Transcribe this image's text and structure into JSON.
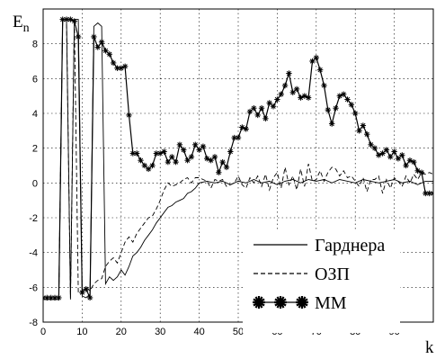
{
  "chart_data": {
    "type": "line",
    "xlabel": "k",
    "ylabel": "E",
    "ylabel_sub": "n",
    "xlim": [
      0,
      100
    ],
    "ylim": [
      -8,
      10
    ],
    "xticks": [
      0,
      10,
      20,
      30,
      40,
      50,
      60,
      70,
      80,
      90
    ],
    "yticks": [
      -8,
      -6,
      -4,
      -2,
      0,
      2,
      4,
      6,
      8
    ],
    "grid": true,
    "legend_position": "bottom-right",
    "series": [
      {
        "name": "Гарднера",
        "style": "solid",
        "x": [
          0,
          1,
          2,
          3,
          4,
          5,
          6,
          7,
          8,
          9,
          10,
          11,
          12,
          13,
          14,
          15,
          16,
          17,
          18,
          19,
          20,
          21,
          22,
          23,
          24,
          25,
          26,
          27,
          28,
          29,
          30,
          31,
          32,
          33,
          34,
          35,
          36,
          37,
          38,
          39,
          40,
          42,
          44,
          46,
          48,
          50,
          52,
          54,
          56,
          58,
          60,
          62,
          64,
          66,
          68,
          70,
          72,
          74,
          76,
          78,
          80,
          82,
          84,
          86,
          88,
          90,
          92,
          94,
          96,
          98,
          100
        ],
        "y": [
          -6.7,
          -6.7,
          -6.7,
          -6.7,
          -6.7,
          9.4,
          9.4,
          -6.7,
          9.4,
          9.4,
          -6.5,
          -6.6,
          -6.4,
          9.0,
          9.2,
          9.0,
          -5.8,
          -5.4,
          -5.6,
          -5.4,
          -5.0,
          -5.3,
          -4.8,
          -4.2,
          -4.0,
          -3.7,
          -3.3,
          -3.0,
          -2.7,
          -2.3,
          -2.0,
          -1.7,
          -1.4,
          -1.3,
          -1.1,
          -1.0,
          -0.9,
          -0.6,
          -0.5,
          -0.3,
          0.0,
          0.1,
          0.0,
          0.1,
          -0.1,
          0.1,
          0.0,
          0.2,
          0.0,
          0.1,
          -0.1,
          0.1,
          0.2,
          0.0,
          0.2,
          0.1,
          0.2,
          0.0,
          0.2,
          0.1,
          0.0,
          0.2,
          0.1,
          0.0,
          0.1,
          0.2,
          0.0,
          0.1,
          -0.1,
          0.1,
          0.1
        ]
      },
      {
        "name": "ОЗП",
        "style": "dashed",
        "x": [
          0,
          1,
          2,
          3,
          4,
          5,
          6,
          7,
          8,
          9,
          10,
          11,
          12,
          13,
          14,
          15,
          16,
          17,
          18,
          19,
          20,
          21,
          22,
          23,
          24,
          25,
          26,
          27,
          28,
          29,
          30,
          31,
          32,
          33,
          34,
          35,
          36,
          37,
          38,
          39,
          40,
          41,
          42,
          43,
          44,
          45,
          46,
          47,
          48,
          49,
          50,
          51,
          52,
          53,
          54,
          55,
          56,
          57,
          58,
          59,
          60,
          61,
          62,
          63,
          64,
          65,
          66,
          67,
          68,
          69,
          70,
          71,
          72,
          73,
          74,
          75,
          76,
          77,
          78,
          79,
          80,
          81,
          82,
          83,
          84,
          85,
          86,
          87,
          88,
          89,
          90,
          91,
          92,
          93,
          94,
          95,
          96,
          97,
          98,
          99,
          100
        ],
        "y": [
          -6.6,
          -6.6,
          -6.6,
          -6.6,
          -6.6,
          9.4,
          9.4,
          -6.6,
          9.4,
          -6.3,
          -6.2,
          -6.0,
          -6.2,
          -5.8,
          -5.6,
          -5.5,
          -4.8,
          -4.5,
          -4.3,
          -4.6,
          -4.0,
          -3.4,
          -3.1,
          -3.4,
          -2.9,
          -2.6,
          -2.3,
          -2.0,
          -1.9,
          -1.5,
          -1.0,
          -0.4,
          0.0,
          -0.2,
          -0.1,
          0.0,
          0.2,
          0.3,
          0.0,
          0.3,
          0.3,
          0.2,
          0.1,
          -0.3,
          0.2,
          0.1,
          0.2,
          -0.2,
          -0.1,
          0.0,
          0.4,
          -0.1,
          -0.3,
          0.3,
          0.0,
          0.4,
          -0.2,
          0.5,
          -0.4,
          0.3,
          0.6,
          -0.3,
          0.9,
          -0.1,
          0.4,
          -0.4,
          0.8,
          -0.2,
          1.1,
          0.1,
          0.2,
          0.7,
          0.1,
          0.6,
          0.9,
          0.8,
          0.4,
          0.7,
          0.3,
          0.4,
          0.1,
          -0.2,
          0.3,
          -0.5,
          0.2,
          0.2,
          0.4,
          -0.6,
          0.2,
          -0.3,
          0.3,
          0.1,
          -0.2,
          0.4,
          0.0,
          0.5,
          0.2,
          0.6,
          0.5,
          0.6,
          0.5
        ]
      },
      {
        "name": "ММ",
        "style": "solid-marker",
        "x": [
          0,
          1,
          2,
          3,
          4,
          5,
          6,
          7,
          8,
          9,
          10,
          11,
          12,
          13,
          14,
          15,
          16,
          17,
          18,
          19,
          20,
          21,
          22,
          23,
          24,
          25,
          26,
          27,
          28,
          29,
          30,
          31,
          32,
          33,
          34,
          35,
          36,
          37,
          38,
          39,
          40,
          41,
          42,
          43,
          44,
          45,
          46,
          47,
          48,
          49,
          50,
          51,
          52,
          53,
          54,
          55,
          56,
          57,
          58,
          59,
          60,
          61,
          62,
          63,
          64,
          65,
          66,
          67,
          68,
          69,
          70,
          71,
          72,
          73,
          74,
          75,
          76,
          77,
          78,
          79,
          80,
          81,
          82,
          83,
          84,
          85,
          86,
          87,
          88,
          89,
          90,
          91,
          92,
          93,
          94,
          95,
          96,
          97,
          98,
          99,
          100
        ],
        "y": [
          -6.6,
          -6.6,
          -6.6,
          -6.6,
          -6.6,
          9.4,
          9.4,
          9.4,
          9.3,
          8.4,
          -6.3,
          -6.1,
          -6.6,
          8.4,
          7.8,
          8.1,
          7.6,
          7.4,
          6.9,
          6.6,
          6.6,
          6.7,
          3.9,
          1.7,
          1.7,
          1.3,
          1.0,
          0.8,
          1.0,
          1.7,
          1.7,
          1.8,
          1.2,
          1.5,
          1.2,
          2.2,
          1.9,
          1.3,
          1.5,
          2.2,
          1.9,
          2.1,
          1.4,
          1.3,
          1.5,
          0.6,
          1.2,
          0.9,
          1.8,
          2.6,
          2.6,
          3.2,
          3.1,
          4.1,
          4.3,
          3.9,
          4.3,
          3.7,
          4.6,
          4.4,
          4.8,
          5.1,
          5.6,
          6.3,
          5.2,
          5.4,
          4.9,
          5.0,
          4.9,
          7.0,
          7.2,
          6.5,
          5.6,
          4.2,
          3.4,
          4.3,
          5.0,
          5.1,
          4.8,
          4.5,
          4.0,
          3.0,
          3.3,
          2.8,
          2.2,
          2.0,
          1.6,
          1.7,
          1.9,
          1.5,
          1.8,
          1.4,
          1.6,
          1.0,
          1.3,
          1.2,
          0.7,
          0.6,
          -0.6,
          -0.6,
          -0.6
        ]
      }
    ]
  }
}
